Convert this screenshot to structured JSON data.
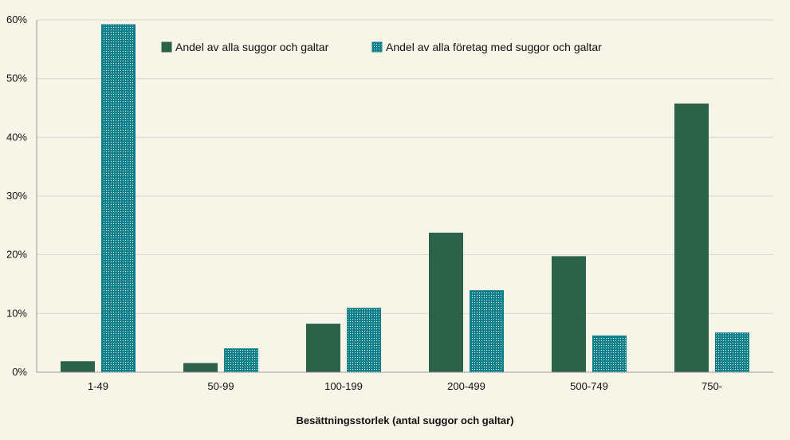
{
  "chart_data": {
    "type": "bar",
    "categories": [
      "1-49",
      "50-99",
      "100-199",
      "200-499",
      "500-749",
      "750-"
    ],
    "series": [
      {
        "name": "Andel av alla suggor och galtar",
        "values": [
          1.8,
          1.5,
          8.2,
          23.7,
          19.7,
          45.7
        ],
        "color": "#2c614a",
        "pattern": "solid"
      },
      {
        "name": "Andel av alla företag med suggor och galtar",
        "values": [
          59.2,
          4.0,
          10.9,
          13.9,
          6.2,
          6.7
        ],
        "color": "#0f7f8c",
        "pattern": "dotted"
      }
    ],
    "xlabel": "Besättningsstorlek (antal suggor och galtar)",
    "ylabel": "",
    "ylim": [
      0,
      60
    ],
    "yticks": [
      0,
      10,
      20,
      30,
      40,
      50,
      60
    ],
    "ytick_labels": [
      "0%",
      "10%",
      "20%",
      "30%",
      "40%",
      "50%",
      "60%"
    ],
    "grid": true,
    "legend_position": "top"
  }
}
